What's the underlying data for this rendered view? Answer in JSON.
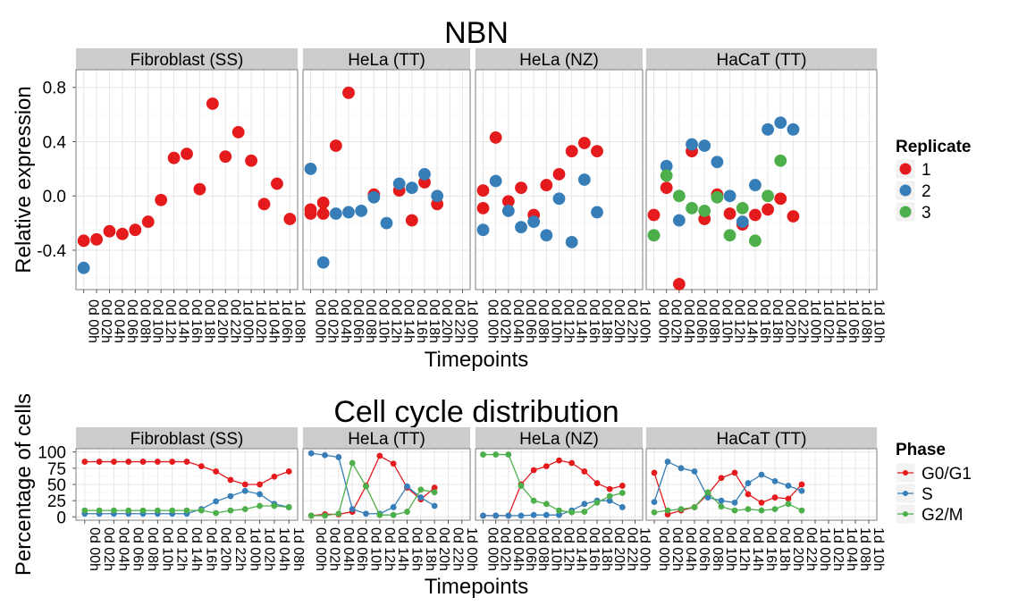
{
  "chart_data": [
    {
      "type": "scatter",
      "title": "NBN",
      "ylabel": "Relative expression",
      "xlabel": "Timepoints",
      "ylim": [
        -0.69,
        0.93
      ],
      "yticks": [
        "-0.4",
        "0.0",
        "0.4",
        "0.8"
      ],
      "yticks_values": [
        -0.4,
        0.0,
        0.4,
        0.8
      ],
      "grid": true,
      "legend": {
        "title": "Replicate",
        "position": "right",
        "entries": [
          "1",
          "2",
          "3"
        ]
      },
      "series_colors": {
        "1": "#e41a1c",
        "2": "#377eb8",
        "3": "#4daf4a"
      },
      "panels": [
        {
          "label": "Fibroblast (SS)",
          "categories": [
            "0d 00h",
            "0d 02h",
            "0d 04h",
            "0d 06h",
            "0d 08h",
            "0d 10h",
            "0d 12h",
            "0d 14h",
            "0d 16h",
            "0d 18h",
            "0d 20h",
            "0d 22h",
            "1d 00h",
            "1d 02h",
            "1d 04h",
            "1d 06h",
            "1d 08h"
          ],
          "series": [
            {
              "name": "1",
              "values": [
                -0.33,
                -0.32,
                -0.26,
                -0.28,
                -0.25,
                -0.19,
                -0.03,
                0.28,
                0.31,
                0.05,
                0.68,
                0.29,
                0.47,
                0.26,
                -0.06,
                0.09,
                -0.17
              ]
            },
            {
              "name": "2",
              "values": [
                -0.53,
                null,
                null,
                null,
                null,
                null,
                null,
                null,
                null,
                null,
                null,
                null,
                null,
                null,
                null,
                null,
                null
              ]
            }
          ]
        },
        {
          "label": "HeLa (TT)",
          "categories": [
            "0d 00h",
            "0d 02h",
            "0d 04h",
            "0d 06h",
            "0d 08h",
            "0d 10h",
            "0d 12h",
            "0d 14h",
            "0d 16h",
            "0d 18h",
            "0d 20h",
            "0d 22h",
            "1d 00h"
          ],
          "series": [
            {
              "name": "1",
              "values": [
                -0.1,
                -0.05,
                0.37,
                0.76,
                null,
                0.01,
                null,
                0.04,
                -0.18,
                0.1,
                -0.06,
                null,
                null
              ]
            },
            {
              "name": "2",
              "values": [
                0.2,
                -0.49,
                -0.13,
                -0.12,
                -0.11,
                -0.01,
                -0.2,
                0.09,
                0.06,
                0.16,
                0.0,
                null,
                null
              ]
            },
            {
              "name": "1",
              "values": [
                -0.13,
                -0.13,
                null,
                null,
                null,
                null,
                null,
                null,
                null,
                null,
                null,
                null,
                null
              ]
            }
          ]
        },
        {
          "label": "HeLa (NZ)",
          "categories": [
            "0d 00h",
            "0d 02h",
            "0d 04h",
            "0d 06h",
            "0d 08h",
            "0d 10h",
            "0d 12h",
            "0d 14h",
            "0d 16h",
            "0d 18h",
            "0d 20h",
            "0d 22h",
            "1d 00h"
          ],
          "series": [
            {
              "name": "1",
              "values": [
                -0.09,
                0.43,
                -0.04,
                0.06,
                -0.14,
                0.08,
                0.16,
                0.33,
                0.39,
                0.33,
                null,
                null,
                null
              ]
            },
            {
              "name": "2",
              "values": [
                -0.25,
                0.11,
                -0.11,
                -0.23,
                -0.19,
                -0.29,
                -0.02,
                -0.34,
                0.12,
                -0.12,
                null,
                null,
                null
              ]
            },
            {
              "name": "1",
              "values": [
                0.04,
                null,
                null,
                null,
                null,
                null,
                null,
                null,
                null,
                null,
                null,
                null,
                null
              ]
            }
          ]
        },
        {
          "label": "HaCaT (TT)",
          "categories": [
            "0d 00h",
            "0d 02h",
            "0d 04h",
            "0d 06h",
            "0d 08h",
            "0d 10h",
            "0d 12h",
            "0d 14h",
            "0d 16h",
            "0d 18h",
            "0d 20h",
            "0d 22h",
            "1d 00h",
            "1d 02h",
            "1d 04h",
            "1d 06h",
            "1d 08h",
            "1d 10h"
          ],
          "series": [
            {
              "name": "1",
              "values": [
                -0.14,
                0.06,
                -0.65,
                0.33,
                -0.17,
                0.01,
                -0.13,
                -0.21,
                -0.14,
                -0.1,
                -0.02,
                -0.15,
                null,
                null,
                null,
                null,
                null,
                null
              ]
            },
            {
              "name": "2",
              "values": [
                -0.29,
                0.22,
                -0.18,
                0.38,
                0.37,
                0.25,
                0.0,
                -0.19,
                0.08,
                0.49,
                0.54,
                0.49,
                null,
                null,
                null,
                null,
                null,
                null
              ]
            },
            {
              "name": "3",
              "values": [
                -0.29,
                0.15,
                0.0,
                -0.09,
                -0.11,
                -0.01,
                -0.29,
                -0.09,
                -0.33,
                0.0,
                0.26,
                null,
                null,
                null,
                null,
                null,
                null,
                null
              ]
            }
          ]
        }
      ]
    },
    {
      "type": "line",
      "title": "Cell cycle distribution",
      "ylabel": "Percentage of cells",
      "xlabel": "Timepoints",
      "ylim": [
        -5,
        105
      ],
      "yticks": [
        "0",
        "25",
        "50",
        "75",
        "100"
      ],
      "yticks_values": [
        0,
        25,
        50,
        75,
        100
      ],
      "grid": true,
      "legend": {
        "title": "Phase",
        "position": "right",
        "entries": [
          "G0/G1",
          "S",
          "G2/M"
        ]
      },
      "series_colors": {
        "G0/G1": "#e41a1c",
        "S": "#377eb8",
        "G2/M": "#4daf4a"
      },
      "panels": [
        {
          "label": "Fibroblast (SS)",
          "categories": [
            "0d 00h",
            "0d 02h",
            "0d 04h",
            "0d 06h",
            "0d 08h",
            "0d 10h",
            "0d 12h",
            "0d 14h",
            "0d 16h",
            "0d 20h",
            "0d 22h",
            "1d 00h",
            "1d 02h",
            "1d 04h",
            "1d 08h"
          ],
          "series": [
            {
              "name": "G0/G1",
              "values": [
                85,
                85,
                85,
                85,
                85,
                85,
                85,
                85,
                78,
                70,
                57,
                50,
                50,
                62,
                70
              ]
            },
            {
              "name": "S",
              "values": [
                5,
                5,
                5,
                5,
                5,
                5,
                5,
                5,
                12,
                24,
                32,
                40,
                35,
                20,
                15
              ]
            },
            {
              "name": "G2/M",
              "values": [
                10,
                10,
                10,
                10,
                10,
                10,
                10,
                10,
                10,
                6,
                10,
                12,
                17,
                17,
                15
              ]
            }
          ]
        },
        {
          "label": "HeLa (TT)",
          "categories": [
            "0d 00h",
            "0d 02h",
            "0d 04h",
            "0d 06h",
            "0d 10h",
            "0d 12h",
            "0d 14h",
            "0d 16h",
            "0d 18h",
            "0d 20h",
            "0d 22h",
            "1d 00h"
          ],
          "series": [
            {
              "name": "G0/G1",
              "values": [
                2,
                4,
                4,
                8,
                48,
                94,
                82,
                45,
                27,
                45,
                null,
                null
              ]
            },
            {
              "name": "S",
              "values": [
                98,
                95,
                92,
                12,
                5,
                5,
                15,
                47,
                30,
                17,
                null,
                null
              ]
            },
            {
              "name": "G2/M",
              "values": [
                2,
                2,
                5,
                83,
                47,
                3,
                3,
                8,
                42,
                38,
                null,
                null
              ]
            }
          ]
        },
        {
          "label": "HeLa (NZ)",
          "categories": [
            "0d 00h",
            "0d 02h",
            "0d 04h",
            "0d 06h",
            "0d 08h",
            "0d 10h",
            "0d 12h",
            "0d 14h",
            "0d 16h",
            "0d 18h",
            "0d 20h",
            "0d 22h",
            "1d 00h"
          ],
          "series": [
            {
              "name": "G0/G1",
              "values": [
                2,
                2,
                2,
                50,
                72,
                78,
                87,
                83,
                70,
                52,
                43,
                48,
                null
              ]
            },
            {
              "name": "S",
              "values": [
                2,
                2,
                2,
                2,
                3,
                3,
                3,
                10,
                20,
                25,
                25,
                15,
                null
              ]
            },
            {
              "name": "G2/M",
              "values": [
                96,
                96,
                96,
                48,
                25,
                20,
                10,
                7,
                8,
                22,
                32,
                37,
                null
              ]
            }
          ]
        },
        {
          "label": "HaCaT (TT)",
          "categories": [
            "0d 00h",
            "0d 02h",
            "0d 04h",
            "0d 06h",
            "0d 08h",
            "0d 10h",
            "0d 12h",
            "0d 14h",
            "0d 16h",
            "0d 18h",
            "0d 20h",
            "0d 22h",
            "1d 00h",
            "1d 02h",
            "1d 04h",
            "1d 08h",
            "1d 10h"
          ],
          "series": [
            {
              "name": "G0/G1",
              "values": [
                68,
                4,
                10,
                15,
                35,
                60,
                68,
                35,
                22,
                30,
                28,
                50,
                null,
                null,
                null,
                null,
                null
              ]
            },
            {
              "name": "S",
              "values": [
                23,
                85,
                75,
                70,
                30,
                25,
                22,
                52,
                65,
                55,
                48,
                40,
                null,
                null,
                null,
                null,
                null
              ]
            },
            {
              "name": "G2/M",
              "values": [
                7,
                10,
                12,
                15,
                38,
                16,
                10,
                12,
                10,
                12,
                20,
                10,
                null,
                null,
                null,
                null,
                null
              ]
            }
          ]
        }
      ]
    }
  ]
}
